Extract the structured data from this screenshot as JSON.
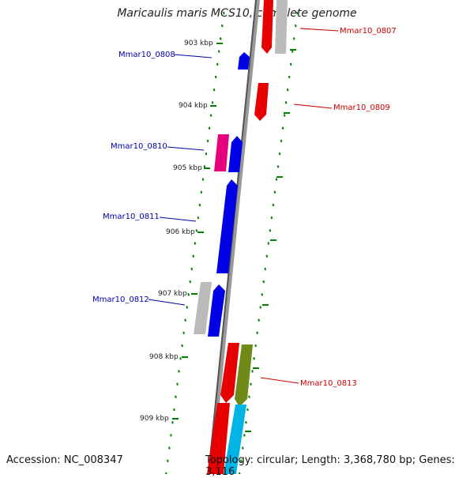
{
  "title": "Maricaulis maris MCS10, complete genome",
  "accession": "Accession: NC_008347",
  "topology": "Topology: circular; Length: 3,368,780 bp; Genes: 3,116",
  "ticks": [
    "903 kbp",
    "904 kbp",
    "905 kbp",
    "906 kbp",
    "907 kbp",
    "908 kbp",
    "909 kbp"
  ],
  "genes": {
    "left": [
      "Mmar10_0808",
      "Mmar10_0810",
      "Mmar10_0811",
      "Mmar10_0812"
    ],
    "right": [
      "Mmar10_0807",
      "Mmar10_0809",
      "Mmar10_0813"
    ]
  },
  "colors": {
    "forward_cds": "#e60000",
    "reverse_cds": "#0000e6",
    "grey_feature": "#bbbbbb",
    "magenta_feature": "#e6007e",
    "olive_feature": "#708a1a",
    "cyan_feature": "#00b4e6",
    "tick_green": "#008000",
    "left_label": "#0000aa",
    "right_label": "#cc0000"
  }
}
